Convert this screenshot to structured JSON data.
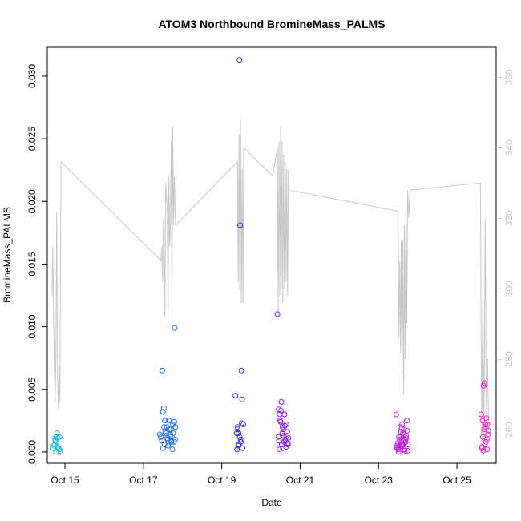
{
  "chart_data": {
    "type": "scatter",
    "title": "ATOM3 Northbound BromineMass_PALMS",
    "xlabel": "Date",
    "ylabel": "BromineMass_PALMS",
    "x_ticks": [
      "Oct 15",
      "Oct 17",
      "Oct 19",
      "Oct 21",
      "Oct 23",
      "Oct 25"
    ],
    "xlim": [
      14.55,
      26.0
    ],
    "ylim": [
      -0.0009,
      0.0323
    ],
    "y_ticks": [
      "0.000",
      "0.005",
      "0.010",
      "0.015",
      "0.020",
      "0.025",
      "0.030"
    ],
    "y2lim": [
      250.5,
      368.5
    ],
    "y2_ticks": [
      "260",
      "280",
      "300",
      "320",
      "340",
      "360"
    ],
    "colors": {
      "line": "#c8c8c8",
      "axis": "#000000",
      "secondary_axis": "#c8c8c8"
    },
    "series": [
      {
        "color": "#29b6f6",
        "x": [
          14.7,
          14.74,
          14.76,
          14.78,
          14.8,
          14.82,
          14.85,
          14.88,
          14.72,
          14.75,
          14.79,
          14.84,
          14.86,
          14.77,
          14.81
        ],
        "y": [
          0.0003,
          0.0006,
          0.0009,
          0.0012,
          0.0015,
          0.0011,
          0.0002,
          0.0001,
          0.0005,
          0.001,
          0.0008,
          0.0003,
          0.0012,
          0.0,
          0.0004
        ]
      },
      {
        "color": "#1e6fe8",
        "x": [
          17.42,
          17.45,
          17.48,
          17.5,
          17.52,
          17.55,
          17.58,
          17.6,
          17.62,
          17.65,
          17.68,
          17.7,
          17.72,
          17.75,
          17.78,
          17.8,
          17.82,
          17.5,
          17.56,
          17.63,
          17.69,
          17.74,
          17.47,
          17.53,
          17.57,
          17.61,
          17.66,
          17.71,
          17.76,
          17.79,
          17.81,
          17.54
        ],
        "y": [
          0.0014,
          0.0012,
          0.0065,
          0.0032,
          0.0035,
          0.0025,
          0.0015,
          0.002,
          0.001,
          0.0025,
          0.0012,
          0.0018,
          0.0008,
          0.0022,
          0.0008,
          0.0099,
          0.002,
          0.0003,
          0.0016,
          0.0005,
          0.0014,
          0.0002,
          0.0009,
          0.002,
          0.0013,
          0.0011,
          0.0018,
          0.0009,
          0.0015,
          0.0024,
          0.001,
          0.0006
        ]
      },
      {
        "color": "#3a30e8",
        "x": [
          19.35,
          19.38,
          19.4,
          19.42,
          19.45,
          19.47,
          19.5,
          19.52,
          19.55,
          19.48,
          19.44,
          19.41,
          19.53,
          19.46,
          19.39,
          19.51,
          19.43,
          19.49
        ],
        "y": [
          0.0045,
          0.0015,
          0.002,
          0.0005,
          0.0313,
          0.0181,
          0.0065,
          0.0042,
          0.0022,
          0.001,
          0.0006,
          0.0018,
          0.0003,
          0.0012,
          0.0002,
          0.0023,
          0.0015,
          0.0008
        ]
      },
      {
        "color": "#8b1ef0",
        "x": [
          20.42,
          20.45,
          20.48,
          20.5,
          20.52,
          20.55,
          20.58,
          20.6,
          20.62,
          20.65,
          20.68,
          20.7,
          20.47,
          20.53,
          20.57,
          20.63,
          20.67,
          20.44,
          20.56,
          20.61,
          20.49,
          20.59,
          20.64,
          20.51,
          20.66,
          20.69,
          20.46,
          20.54
        ],
        "y": [
          0.011,
          0.0034,
          0.003,
          0.0024,
          0.004,
          0.002,
          0.0013,
          0.003,
          0.001,
          0.0022,
          0.0007,
          0.0011,
          0.0002,
          0.0006,
          0.0018,
          0.0009,
          0.0016,
          0.0012,
          0.0003,
          0.0021,
          0.0025,
          0.0008,
          0.0004,
          0.0033,
          0.0013,
          0.0006,
          0.0009,
          0.0015
        ]
      },
      {
        "color": "#c21ee6",
        "x": [
          23.45,
          23.48,
          23.5,
          23.52,
          23.55,
          23.58,
          23.6,
          23.62,
          23.65,
          23.68,
          23.7,
          23.72,
          23.75,
          23.47,
          23.53,
          23.57,
          23.63,
          23.67,
          23.71,
          23.49,
          23.51,
          23.54,
          23.56,
          23.59,
          23.61,
          23.64,
          23.66,
          23.69,
          23.73,
          23.46,
          23.74,
          23.55,
          23.6,
          23.62,
          23.5,
          23.58
        ],
        "y": [
          0.003,
          0.0005,
          0.0002,
          0.0012,
          0.002,
          0.0008,
          0.0022,
          0.0015,
          0.0018,
          0.001,
          0.0013,
          0.0025,
          0.0006,
          0.0003,
          0.0004,
          0.0016,
          0.0009,
          0.0001,
          0.0011,
          0.0007,
          0.0,
          0.001,
          0.0003,
          0.0019,
          0.0006,
          0.0014,
          0.0002,
          0.0008,
          0.0017,
          0.0004,
          0.0001,
          0.0012,
          0.0005,
          0.0009,
          0.0002,
          0.0006
        ]
      },
      {
        "color": "#ee1ec8",
        "x": [
          25.62,
          25.65,
          25.68,
          25.7,
          25.72,
          25.75,
          25.78,
          25.8,
          25.64,
          25.67,
          25.71,
          25.74,
          25.77,
          25.66,
          25.69,
          25.73,
          25.76,
          25.79,
          25.63
        ],
        "y": [
          0.003,
          0.0025,
          0.0053,
          0.0055,
          0.002,
          0.0027,
          0.0022,
          0.0017,
          0.0004,
          0.0001,
          0.0006,
          0.0008,
          0.0002,
          0.0012,
          0.0018,
          0.0022,
          0.001,
          0.0014,
          0.0003
        ]
      }
    ],
    "altitude_line": {
      "x": [
        14.67,
        14.69,
        14.71,
        14.73,
        14.75,
        14.77,
        14.79,
        14.81,
        14.83,
        14.85,
        14.87,
        14.9,
        17.45,
        17.47,
        17.49,
        17.51,
        17.53,
        17.55,
        17.57,
        17.59,
        17.61,
        17.63,
        17.65,
        17.67,
        17.69,
        17.71,
        17.73,
        17.75,
        17.77,
        17.79,
        17.82,
        19.4,
        19.42,
        19.44,
        19.46,
        19.48,
        19.5,
        19.52,
        19.54,
        19.56,
        20.3,
        20.42,
        20.44,
        20.46,
        20.48,
        20.5,
        20.52,
        20.54,
        20.56,
        20.58,
        20.6,
        20.62,
        20.64,
        20.66,
        20.68,
        20.7,
        20.72,
        23.5,
        23.52,
        23.54,
        23.56,
        23.58,
        23.6,
        23.62,
        23.64,
        23.66,
        23.68,
        23.7,
        23.72,
        23.74,
        23.77,
        23.8,
        25.6,
        25.63,
        25.66,
        25.69,
        25.72,
        25.75,
        25.78,
        25.81
      ],
      "y": [
        298,
        312,
        292,
        278,
        268,
        282,
        322,
        276,
        266,
        278,
        268,
        336,
        308,
        312,
        302,
        320,
        314,
        292,
        330,
        326,
        322,
        290,
        332,
        312,
        318,
        342,
        296,
        346,
        318,
        332,
        318,
        336,
        302,
        344,
        300,
        348,
        296,
        334,
        296,
        340,
        332,
        340,
        292,
        342,
        298,
        346,
        300,
        342,
        296,
        338,
        300,
        336,
        302,
        334,
        298,
        334,
        328,
        322,
        286,
        308,
        282,
        314,
        276,
        314,
        270,
        318,
        280,
        322,
        290,
        328,
        320,
        328,
        330,
        256,
        300,
        258,
        320,
        262,
        280,
        260
      ]
    }
  }
}
